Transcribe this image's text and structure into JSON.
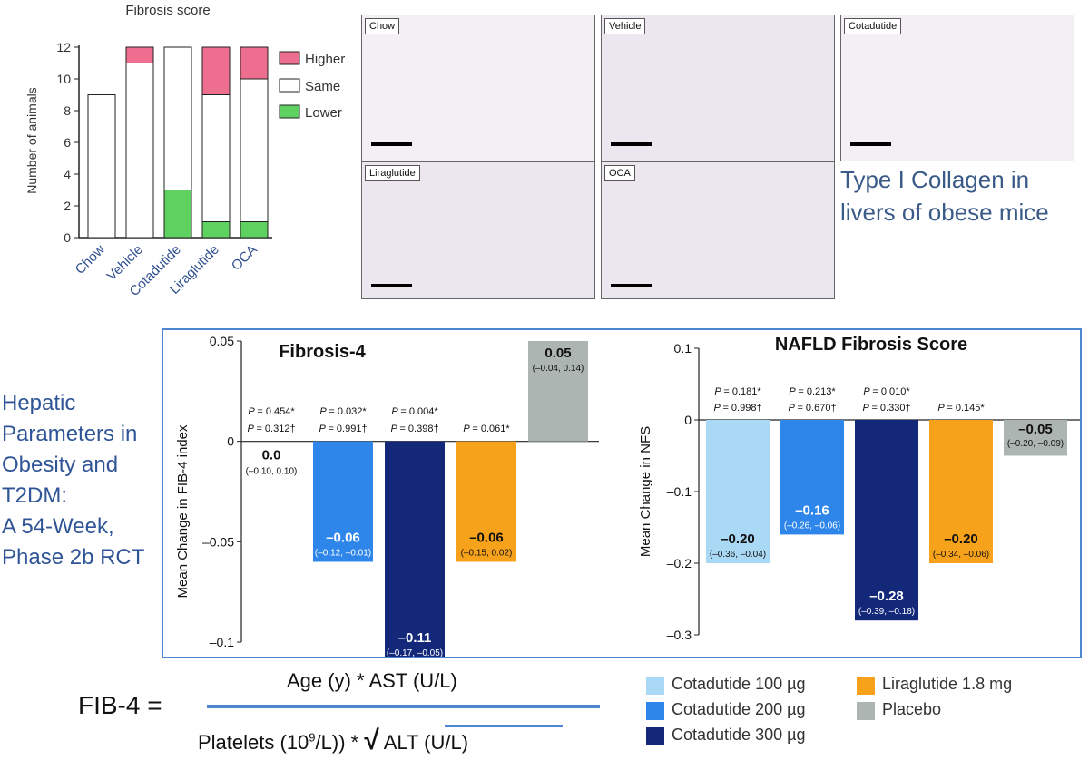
{
  "colors": {
    "higher": "#ee6e8f",
    "same": "#ffffff",
    "lower": "#5ed160",
    "cota100": "#a9d9f5",
    "cota200": "#2f86ea",
    "cota300": "#14287a",
    "lira": "#f7a21b",
    "placebo": "#adb5b2",
    "box": "#4f86d0",
    "text_blue": "#2f5597"
  },
  "fibrosis_chart": {
    "title": "Fibrosis score",
    "ylabel": "Number of animals",
    "legend": [
      "Higher",
      "Same",
      "Lower"
    ],
    "categories": [
      "Chow",
      "Vehicle",
      "Cotadutide",
      "Liraglutide",
      "OCA"
    ],
    "yticks": [
      "0",
      "2",
      "4",
      "6",
      "8",
      "10",
      "12"
    ]
  },
  "histology": {
    "panels": [
      "Chow",
      "Vehicle",
      "Cotadutide",
      "Liraglutide",
      "OCA"
    ],
    "caption_line1": "Type I Collagen in",
    "caption_line2": "livers of obese mice"
  },
  "side_text": [
    "Hepatic",
    "Parameters in",
    "Obesity and",
    "T2DM:",
    "A 54-Week,",
    "Phase 2b RCT"
  ],
  "fib4_chart": {
    "title": "Fibrosis-4",
    "ylabel": "Mean Change in FIB-4 index",
    "yticks": [
      "0.05",
      "0",
      "–0.05",
      "–0.1"
    ]
  },
  "nfs_chart": {
    "title": "NAFLD Fibrosis Score",
    "ylabel": "Mean Change in NFS",
    "yticks": [
      "0.1",
      "0",
      "–0.1",
      "–0.2",
      "–0.3"
    ]
  },
  "legend": [
    "Cotadutide 100 µg",
    "Cotadutide 200 µg",
    "Cotadutide 300 µg",
    "Liraglutide 1.8 mg",
    "Placebo"
  ],
  "formula": {
    "lhs": "FIB-4 =",
    "numerator": "Age (y) * AST (U/L)",
    "denominator_a": "Platelets (10",
    "denominator_sup": "9",
    "denominator_b": "/L)) *",
    "sqrt": "√",
    "denominator_c": "ALT (U/L)"
  },
  "chart_data": [
    {
      "type": "bar",
      "title": "Fibrosis score",
      "ylabel": "Number of animals",
      "categories": [
        "Chow",
        "Vehicle",
        "Cotadutide",
        "Liraglutide",
        "OCA"
      ],
      "ylim": [
        0,
        12
      ],
      "stacked": true,
      "legend_position": "right",
      "series": [
        {
          "name": "Lower",
          "values": [
            0,
            0,
            3,
            1,
            1
          ]
        },
        {
          "name": "Same",
          "values": [
            9,
            11,
            9,
            8,
            9
          ]
        },
        {
          "name": "Higher",
          "values": [
            0,
            1,
            0,
            3,
            2
          ]
        }
      ]
    },
    {
      "type": "bar",
      "title": "Fibrosis-4",
      "ylabel": "Mean Change in FIB-4 index",
      "ylim": [
        -0.1,
        0.05
      ],
      "values": [
        0.0,
        -0.06,
        -0.11,
        -0.06,
        0.05
      ],
      "value_labels": [
        "0.0",
        "–0.06",
        "–0.11",
        "–0.06",
        "0.05"
      ],
      "ci_labels": [
        "(–0.10, 0.10)",
        "(–0.12, –0.01)",
        "(–0.17, –0.05)",
        "(–0.15, 0.02)",
        "(–0.04, 0.14)"
      ],
      "p_star": [
        "= 0.454*",
        "= 0.032*",
        "= 0.004*",
        "= 0.061*",
        ""
      ],
      "p_dagger": [
        "= 0.312†",
        "= 0.991†",
        "= 0.398†",
        "",
        ""
      ]
    },
    {
      "type": "bar",
      "title": "NAFLD Fibrosis Score",
      "ylabel": "Mean Change in NFS",
      "ylim": [
        -0.3,
        0.1
      ],
      "values": [
        -0.2,
        -0.16,
        -0.28,
        -0.2,
        -0.05
      ],
      "value_labels": [
        "–0.20",
        "–0.16",
        "–0.28",
        "–0.20",
        "–0.05"
      ],
      "ci_labels": [
        "(–0.36, –0.04)",
        "(–0.26, –0.06)",
        "(–0.39, –0.18)",
        "(–0.34, –0.06)",
        "(–0.20, –0.09)"
      ],
      "p_star": [
        "= 0.181*",
        "= 0.213*",
        "= 0.010*",
        "= 0.145*",
        ""
      ],
      "p_dagger": [
        "= 0.998†",
        "= 0.670†",
        "= 0.330†",
        "",
        ""
      ]
    }
  ]
}
